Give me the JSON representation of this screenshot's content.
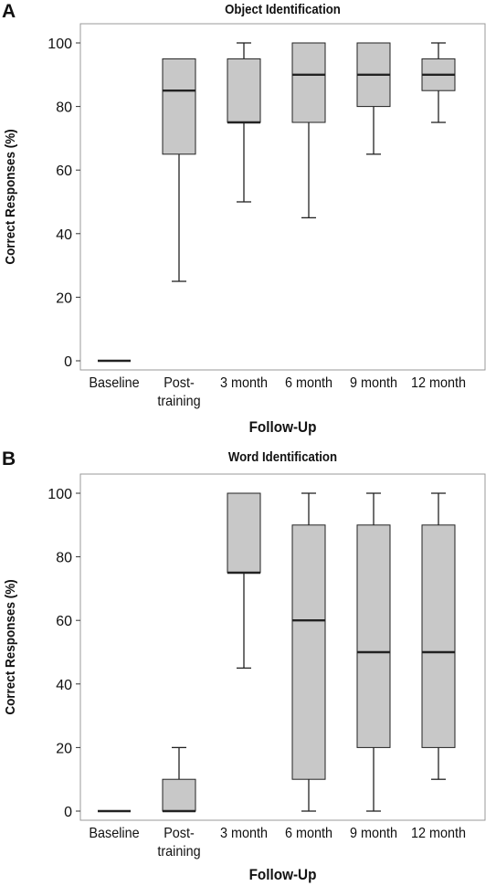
{
  "chart_data": [
    {
      "type": "box",
      "panel_label": "A",
      "title": "Object Identification",
      "xlabel": "Follow-Up",
      "ylabel": "Correct Responses (%)",
      "ylim": [
        0,
        100
      ],
      "yticks": [
        0,
        20,
        40,
        60,
        80,
        100
      ],
      "categories": [
        [
          "Baseline"
        ],
        [
          "Post-",
          "training"
        ],
        [
          "3 month"
        ],
        [
          "6 month"
        ],
        [
          "9 month"
        ],
        [
          "12 month"
        ]
      ],
      "boxes": [
        {
          "min": 0,
          "q1": 0,
          "median": 0,
          "q3": 0,
          "max": 0
        },
        {
          "min": 25,
          "q1": 65,
          "median": 85,
          "q3": 95,
          "max": 95
        },
        {
          "min": 50,
          "q1": 75,
          "median": 75,
          "q3": 95,
          "max": 100
        },
        {
          "min": 45,
          "q1": 75,
          "median": 90,
          "q3": 100,
          "max": 100
        },
        {
          "min": 65,
          "q1": 80,
          "median": 90,
          "q3": 100,
          "max": 100
        },
        {
          "min": 75,
          "q1": 85,
          "median": 90,
          "q3": 95,
          "max": 100
        }
      ]
    },
    {
      "type": "box",
      "panel_label": "B",
      "title": "Word Identification",
      "xlabel": "Follow-Up",
      "ylabel": "Correct Responses (%)",
      "ylim": [
        0,
        100
      ],
      "yticks": [
        0,
        20,
        40,
        60,
        80,
        100
      ],
      "categories": [
        [
          "Baseline"
        ],
        [
          "Post-",
          "training"
        ],
        [
          "3 month"
        ],
        [
          "6 month"
        ],
        [
          "9 month"
        ],
        [
          "12 month"
        ]
      ],
      "boxes": [
        {
          "min": 0,
          "q1": 0,
          "median": 0,
          "q3": 0,
          "max": 0
        },
        {
          "min": 0,
          "q1": 0,
          "median": 0,
          "q3": 10,
          "max": 20
        },
        {
          "min": 45,
          "q1": 75,
          "median": 75,
          "q3": 100,
          "max": 100
        },
        {
          "min": 0,
          "q1": 10,
          "median": 60,
          "q3": 90,
          "max": 100
        },
        {
          "min": 0,
          "q1": 20,
          "median": 50,
          "q3": 90,
          "max": 100
        },
        {
          "min": 10,
          "q1": 20,
          "median": 50,
          "q3": 90,
          "max": 100
        }
      ]
    }
  ],
  "colors": {
    "box_fill": "#c8c8c8",
    "stroke": "#222222",
    "frame": "#999999"
  }
}
